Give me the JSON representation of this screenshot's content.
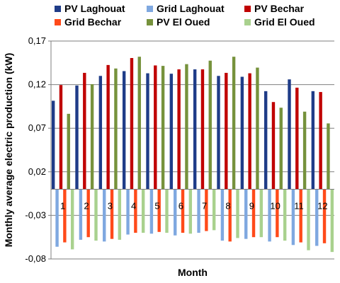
{
  "chart_data": {
    "type": "bar",
    "title": "",
    "xlabel": "Month",
    "ylabel": "Monthly average electric production (kW)",
    "categories": [
      "1",
      "2",
      "3",
      "4",
      "5",
      "6",
      "7",
      "8",
      "9",
      "10",
      "11",
      "12"
    ],
    "yticks": [
      "-0,08",
      "-0,03",
      "0,02",
      "0,07",
      "0,12",
      "0,17"
    ],
    "ytick_values": [
      -0.08,
      -0.03,
      0.02,
      0.07,
      0.12,
      0.17
    ],
    "ylim": [
      -0.08,
      0.17
    ],
    "grid": true,
    "legend_position": "top",
    "series": [
      {
        "name": "PV Laghouat",
        "color": "#1F3C88",
        "values": [
          0.1015,
          0.119,
          0.13,
          0.1355,
          0.133,
          0.1325,
          0.1375,
          0.13,
          0.129,
          0.1125,
          0.126,
          0.1125
        ]
      },
      {
        "name": "Grid Laghouat",
        "color": "#7FA8E0",
        "values": [
          -0.066,
          -0.058,
          -0.06,
          -0.052,
          -0.051,
          -0.053,
          -0.05,
          -0.059,
          -0.057,
          -0.06,
          -0.064,
          -0.065
        ]
      },
      {
        "name": "PV Bechar",
        "color": "#C00000",
        "values": [
          0.1195,
          0.1335,
          0.1425,
          0.1505,
          0.142,
          0.1375,
          0.1375,
          0.1335,
          0.133,
          0.1,
          0.1165,
          0.1115
        ]
      },
      {
        "name": "Grid Bechar",
        "color": "#FF4A1A",
        "values": [
          -0.061,
          -0.055,
          -0.057,
          -0.05,
          -0.049,
          -0.05,
          -0.048,
          -0.06,
          -0.055,
          -0.055,
          -0.061,
          -0.062
        ]
      },
      {
        "name": "PV El Oued",
        "color": "#76923C",
        "values": [
          0.0865,
          0.1205,
          0.1385,
          0.152,
          0.1415,
          0.1435,
          0.1475,
          0.152,
          0.1395,
          0.0935,
          0.089,
          0.0755
        ]
      },
      {
        "name": "Grid El Oued",
        "color": "#A9D18E",
        "values": [
          -0.069,
          -0.059,
          -0.058,
          -0.05,
          -0.05,
          -0.051,
          -0.047,
          -0.056,
          -0.055,
          -0.059,
          -0.07,
          -0.072
        ]
      }
    ]
  }
}
